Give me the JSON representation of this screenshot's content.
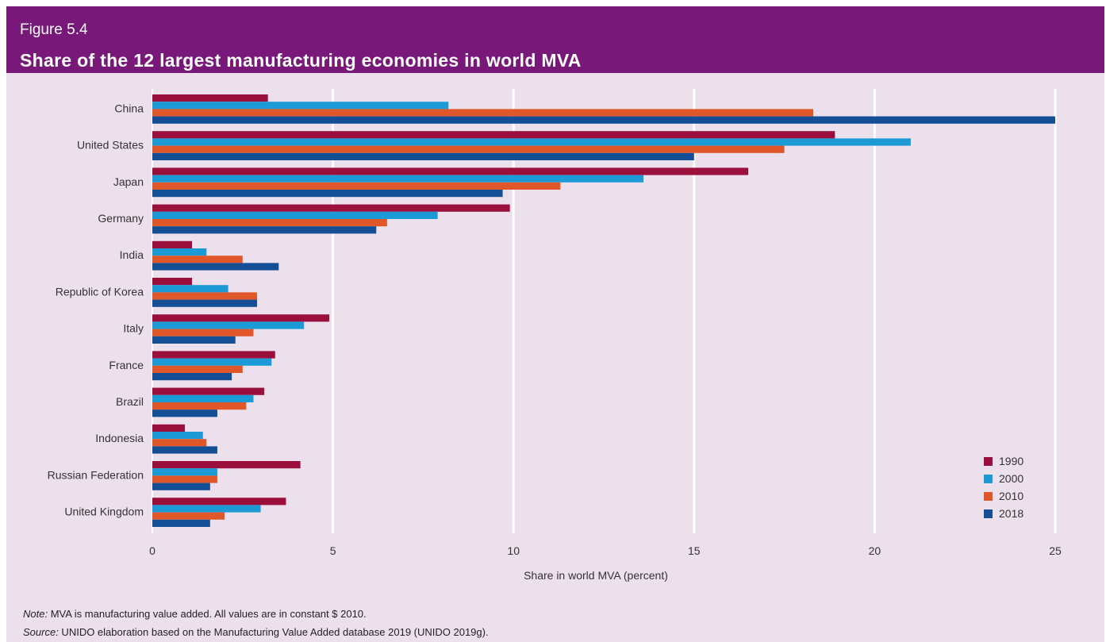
{
  "header": {
    "figure_label": "Figure 5.4",
    "title": "Share of the 12 largest manufacturing economies in world MVA"
  },
  "notes": {
    "note_label": "Note:",
    "note_text": " MVA is manufacturing value added. All values are in constant $ 2010.",
    "source_label": "Source:",
    "source_text": " UNIDO elaboration based on the Manufacturing Value Added database 2019 (UNIDO 2019g)."
  },
  "chart_data": {
    "type": "bar",
    "orientation": "horizontal",
    "title": "Share of the 12 largest manufacturing economies in world MVA",
    "xlabel": "Share in world MVA (percent)",
    "ylabel": "",
    "xlim": [
      0,
      25
    ],
    "xticks": [
      0,
      5,
      10,
      15,
      20,
      25
    ],
    "grid": true,
    "legend_position": "bottom-right",
    "categories": [
      "China",
      "United States",
      "Japan",
      "Germany",
      "India",
      "Republic of Korea",
      "Italy",
      "France",
      "Brazil",
      "Indonesia",
      "Russian Federation",
      "United Kingdom"
    ],
    "series": [
      {
        "name": "1990",
        "color": "#9b0f3c",
        "values": [
          3.2,
          18.9,
          16.5,
          9.9,
          1.1,
          1.1,
          4.9,
          3.4,
          3.1,
          0.9,
          4.1,
          3.7
        ]
      },
      {
        "name": "2000",
        "color": "#1c9ad6",
        "values": [
          8.2,
          21.0,
          13.6,
          7.9,
          1.5,
          2.1,
          4.2,
          3.3,
          2.8,
          1.4,
          1.8,
          3.0
        ]
      },
      {
        "name": "2010",
        "color": "#e0582a",
        "values": [
          18.3,
          17.5,
          11.3,
          6.5,
          2.5,
          2.9,
          2.8,
          2.5,
          2.6,
          1.5,
          1.8,
          2.0
        ]
      },
      {
        "name": "2018",
        "color": "#144f96",
        "values": [
          25.0,
          15.0,
          9.7,
          6.2,
          3.5,
          2.9,
          2.3,
          2.2,
          1.8,
          1.8,
          1.6,
          1.6
        ]
      }
    ]
  }
}
